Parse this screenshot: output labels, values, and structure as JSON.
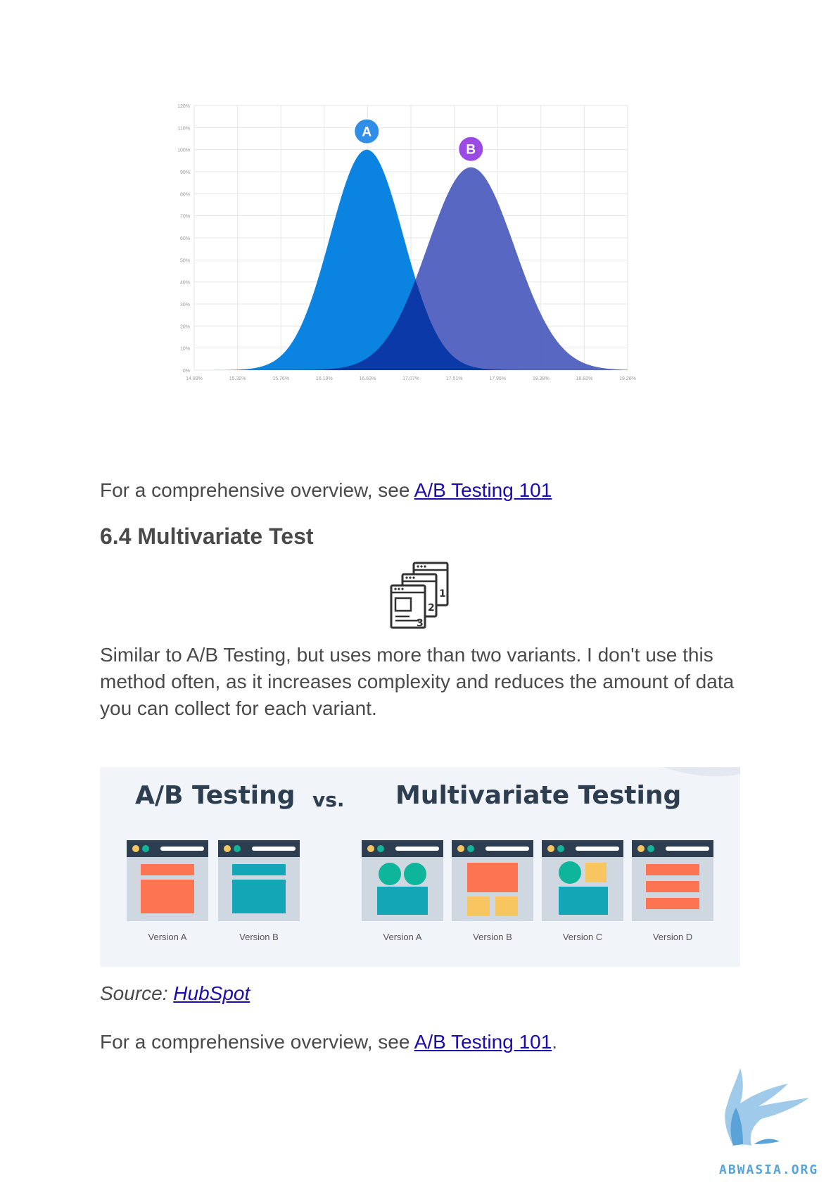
{
  "chart_data": {
    "type": "area",
    "title": "",
    "xlabel": "",
    "ylabel": "",
    "x_ticks": [
      "14.89%",
      "15.32%",
      "15.76%",
      "16.19%",
      "16.63%",
      "17.07%",
      "17.51%",
      "17.95%",
      "18.38%",
      "18.82%",
      "19.26%"
    ],
    "y_ticks": [
      "0%",
      "10%",
      "20%",
      "30%",
      "40%",
      "50%",
      "60%",
      "70%",
      "80%",
      "90%",
      "100%",
      "110%",
      "120%"
    ],
    "ylim": [
      0,
      120
    ],
    "xlim": [
      14.89,
      19.26
    ],
    "grid": true,
    "series": [
      {
        "name": "A",
        "mean": 16.63,
        "sd": 0.37,
        "peak": 100,
        "color": "#0a84e0"
      },
      {
        "name": "B",
        "mean": 17.68,
        "sd": 0.44,
        "peak": 92,
        "color": "#4a5bbd"
      }
    ],
    "overlap_color": "#0b3aa8"
  },
  "paragraph1": {
    "text": "For a comprehensive overview, see ",
    "link": "A/B Testing 101"
  },
  "heading": "6.4 Multivariate Test",
  "paragraph2": "Similar to A/B Testing, but uses more than two variants. I don't use this method often, as it increases complexity and reduces the amount of data you can collect for each variant.",
  "comparison": {
    "left_title": "A/B Testing",
    "vs": "vs.",
    "right_title": "Multivariate Testing",
    "ab_versions": [
      "Version A",
      "Version B"
    ],
    "mv_versions": [
      "Version A",
      "Version B",
      "Version C",
      "Version D"
    ],
    "colors": {
      "orange": "#fd7453",
      "teal": "#13a6b7",
      "green": "#0fb59a",
      "yellow": "#f8c661",
      "dark": "#2d3e50"
    }
  },
  "source": {
    "label": "Source: ",
    "link": "HubSpot"
  },
  "paragraph3": {
    "text": "For a comprehensive overview, see ",
    "link": "A/B Testing 101",
    "suffix": "."
  },
  "logo": {
    "text": "ABWASIA.ORG"
  }
}
